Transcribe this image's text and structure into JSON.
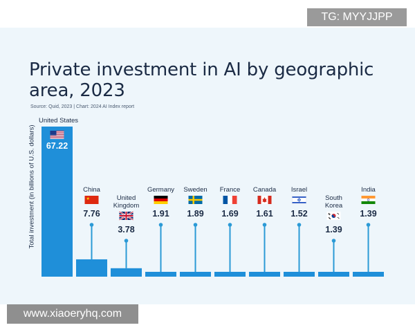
{
  "header": {
    "title": "Private investment in AI by geographic area, 2023",
    "source": "Source: Quid, 2023 | Chart: 2024 AI Index report"
  },
  "watermarks": {
    "top_right": "TG: MYYJJPP",
    "bottom_left": "www.xiaoeryhq.com"
  },
  "colors": {
    "bar": "#1f8fd9",
    "bar_edge": "#1a7cc0",
    "stem": "#2b9ad6",
    "panel": "#eef6fb",
    "text": "#1a2a44"
  },
  "chart_data": {
    "type": "bar",
    "title": "Private investment in AI by geographic area, 2023",
    "subtitle": "Source: Quid, 2023 | Chart: 2024 AI Index report",
    "xlabel": "",
    "ylabel": "Total investment (in billions of U.S. dollars)",
    "categories": [
      "United States",
      "China",
      "United Kingdom",
      "Germany",
      "Sweden",
      "France",
      "Canada",
      "Israel",
      "South Korea",
      "India"
    ],
    "category_lines": [
      [
        "United States"
      ],
      [
        "China"
      ],
      [
        "United",
        "Kingdom"
      ],
      [
        "Germany"
      ],
      [
        "Sweden"
      ],
      [
        "France"
      ],
      [
        "Canada"
      ],
      [
        "Israel"
      ],
      [
        "South",
        "Korea"
      ],
      [
        "India"
      ]
    ],
    "values": [
      67.22,
      7.76,
      3.78,
      1.91,
      1.89,
      1.69,
      1.61,
      1.52,
      1.39,
      1.39
    ],
    "labels": [
      "67.22",
      "7.76",
      "3.78",
      "1.91",
      "1.89",
      "1.69",
      "1.61",
      "1.52",
      "1.39",
      "1.39"
    ],
    "flags": [
      "us-flag-icon",
      "china-flag-icon",
      "uk-flag-icon",
      "germany-flag-icon",
      "sweden-flag-icon",
      "france-flag-icon",
      "canada-flag-icon",
      "israel-flag-icon",
      "south-korea-flag-icon",
      "india-flag-icon"
    ],
    "ylim": [
      0,
      67.22
    ],
    "grid": false,
    "legend": "none"
  }
}
